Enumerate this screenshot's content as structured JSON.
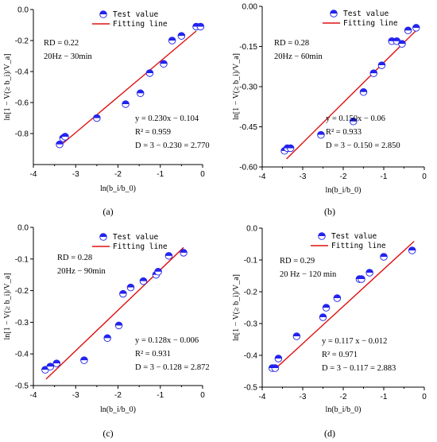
{
  "legend": {
    "marker_label": "Test value",
    "line_label": "Fitting line"
  },
  "colors": {
    "marker": "#1f1fe6",
    "fit": "#e01010",
    "axis": "#000000"
  },
  "labels": {
    "ylabel_main": "ln[1 − V(≥ b_i)/V_a]",
    "xlabel_main": "ln(b_i/b_0)"
  },
  "chart_data": [
    {
      "type": "scatter",
      "caption": "(a)",
      "xlim": [
        -4,
        0
      ],
      "ylim": [
        -1.0,
        0.0
      ],
      "xticks": [
        "-4",
        "-3",
        "-2",
        "-1",
        "0"
      ],
      "yticks": [
        "0.0",
        "-0.2",
        "-0.4",
        "-0.6",
        "-0.8"
      ],
      "ytick_values": [
        0.0,
        -0.2,
        -0.4,
        -0.6,
        -0.8
      ],
      "rd": "RD = 0.22",
      "condition": "20Hz − 30min",
      "equation": "y = 0.230x − 0.104",
      "r2": "R² = 0.959",
      "dim": "D = 3 − 0.230 = 2.770",
      "fit": {
        "slope": 0.23,
        "intercept": -0.104,
        "x_range": [
          -3.4,
          -0.15
        ]
      },
      "points": [
        [
          -3.38,
          -0.87
        ],
        [
          -3.3,
          -0.83
        ],
        [
          -3.25,
          -0.82
        ],
        [
          -2.5,
          -0.7
        ],
        [
          -1.82,
          -0.61
        ],
        [
          -1.47,
          -0.54
        ],
        [
          -1.25,
          -0.41
        ],
        [
          -0.92,
          -0.35
        ],
        [
          -0.72,
          -0.2
        ],
        [
          -0.5,
          -0.17
        ],
        [
          -0.15,
          -0.11
        ],
        [
          -0.05,
          -0.11
        ]
      ]
    },
    {
      "type": "scatter",
      "caption": "(b)",
      "xlim": [
        -4,
        0
      ],
      "ylim": [
        -0.6,
        0.0
      ],
      "xticks": [
        "-4",
        "-3",
        "-2",
        "-1",
        "0"
      ],
      "yticks": [
        "0.00",
        "-0.15",
        "-0.30",
        "-0.45",
        "-0.60"
      ],
      "ytick_values": [
        0.0,
        -0.15,
        -0.3,
        -0.45,
        -0.6
      ],
      "rd": "RD = 0.28",
      "condition": "20Hz − 60min",
      "equation": "y = 0.150x − 0.06",
      "r2": "R² = 0.933",
      "dim": "D = 3 − 0.150 = 2.850",
      "fit": {
        "slope": 0.15,
        "intercept": -0.06,
        "x_range": [
          -3.4,
          -0.2
        ]
      },
      "points": [
        [
          -3.45,
          -0.54
        ],
        [
          -3.38,
          -0.53
        ],
        [
          -3.3,
          -0.53
        ],
        [
          -2.55,
          -0.48
        ],
        [
          -1.75,
          -0.43
        ],
        [
          -1.5,
          -0.32
        ],
        [
          -1.25,
          -0.25
        ],
        [
          -1.05,
          -0.22
        ],
        [
          -0.8,
          -0.13
        ],
        [
          -0.68,
          -0.13
        ],
        [
          -0.55,
          -0.14
        ],
        [
          -0.4,
          -0.09
        ],
        [
          -0.2,
          -0.08
        ]
      ]
    },
    {
      "type": "scatter",
      "caption": "(c)",
      "xlim": [
        -4,
        0
      ],
      "ylim": [
        -0.5,
        0.0
      ],
      "xticks": [
        "-4",
        "-3",
        "-2",
        "-1",
        "0"
      ],
      "yticks": [
        "0.0",
        "-0.1",
        "-0.2",
        "-0.3",
        "-0.4",
        "-0.5"
      ],
      "ytick_values": [
        0.0,
        -0.1,
        -0.2,
        -0.3,
        -0.4,
        -0.5
      ],
      "rd": "RD = 0.28",
      "condition": "20Hz − 90min",
      "equation": "y = 0.128x − 0.006",
      "r2": "R² = 0.931",
      "dim": "D = 3 − 0.128 = 2.872",
      "fit": {
        "slope": 0.128,
        "intercept": -0.006,
        "x_range": [
          -3.7,
          -0.45
        ]
      },
      "points": [
        [
          -3.72,
          -0.45
        ],
        [
          -3.6,
          -0.44
        ],
        [
          -3.45,
          -0.43
        ],
        [
          -2.8,
          -0.42
        ],
        [
          -2.25,
          -0.35
        ],
        [
          -1.98,
          -0.31
        ],
        [
          -1.88,
          -0.21
        ],
        [
          -1.7,
          -0.19
        ],
        [
          -1.4,
          -0.17
        ],
        [
          -1.1,
          -0.15
        ],
        [
          -1.05,
          -0.14
        ],
        [
          -0.8,
          -0.09
        ],
        [
          -0.45,
          -0.08
        ]
      ]
    },
    {
      "type": "scatter",
      "caption": "(d)",
      "xlim": [
        -4,
        0
      ],
      "ylim": [
        -0.5,
        0.0
      ],
      "xticks": [
        "-4",
        "-3",
        "-2",
        "-1",
        "0"
      ],
      "yticks": [
        "0.0",
        "-0.1",
        "-0.2",
        "-0.3",
        "-0.4",
        "-0.5"
      ],
      "ytick_values": [
        0.0,
        -0.1,
        -0.2,
        -0.3,
        -0.4,
        -0.5
      ],
      "rd": "RD = 0.29",
      "condition": "20 Hz − 120 min",
      "equation": "y = 0.117 x − 0.012",
      "r2": "R² = 0.971",
      "dim": "D = 3 − 0.117 = 2.883",
      "fit": {
        "slope": 0.117,
        "intercept": -0.012,
        "x_range": [
          -3.75,
          -0.25
        ]
      },
      "points": [
        [
          -3.75,
          -0.44
        ],
        [
          -3.68,
          -0.44
        ],
        [
          -3.6,
          -0.41
        ],
        [
          -3.15,
          -0.34
        ],
        [
          -2.5,
          -0.28
        ],
        [
          -2.42,
          -0.25
        ],
        [
          -2.15,
          -0.22
        ],
        [
          -1.6,
          -0.16
        ],
        [
          -1.55,
          -0.16
        ],
        [
          -1.35,
          -0.14
        ],
        [
          -1.0,
          -0.09
        ],
        [
          -0.3,
          -0.07
        ]
      ]
    }
  ]
}
